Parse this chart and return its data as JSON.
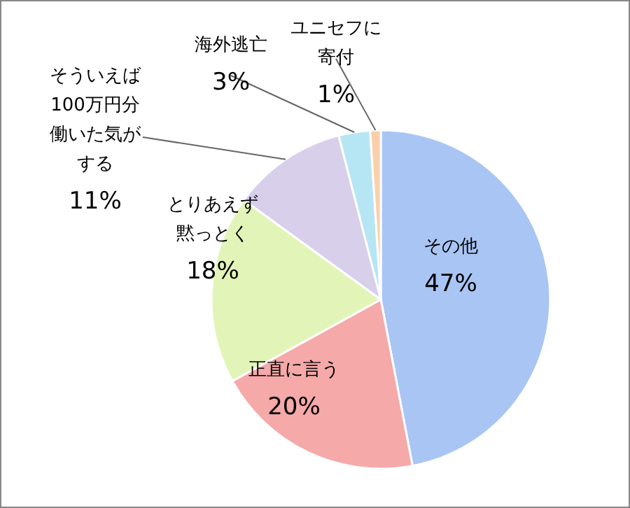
{
  "chart_data": {
    "type": "pie",
    "categories": [
      "その他",
      "正直に言う",
      "とりあえず黙っとく",
      "そういえば100万円分働いた気がする",
      "海外逃亡",
      "ユニセフに寄付"
    ],
    "values": [
      47,
      20,
      18,
      11,
      3,
      1
    ],
    "value_labels": [
      "47%",
      "20%",
      "18%",
      "11%",
      "3%",
      "1%"
    ],
    "colors": [
      "#a9c5f4",
      "#f5a9a9",
      "#e3f4b8",
      "#d8cfeb",
      "#b6e6f4",
      "#fbcfa9"
    ]
  }
}
